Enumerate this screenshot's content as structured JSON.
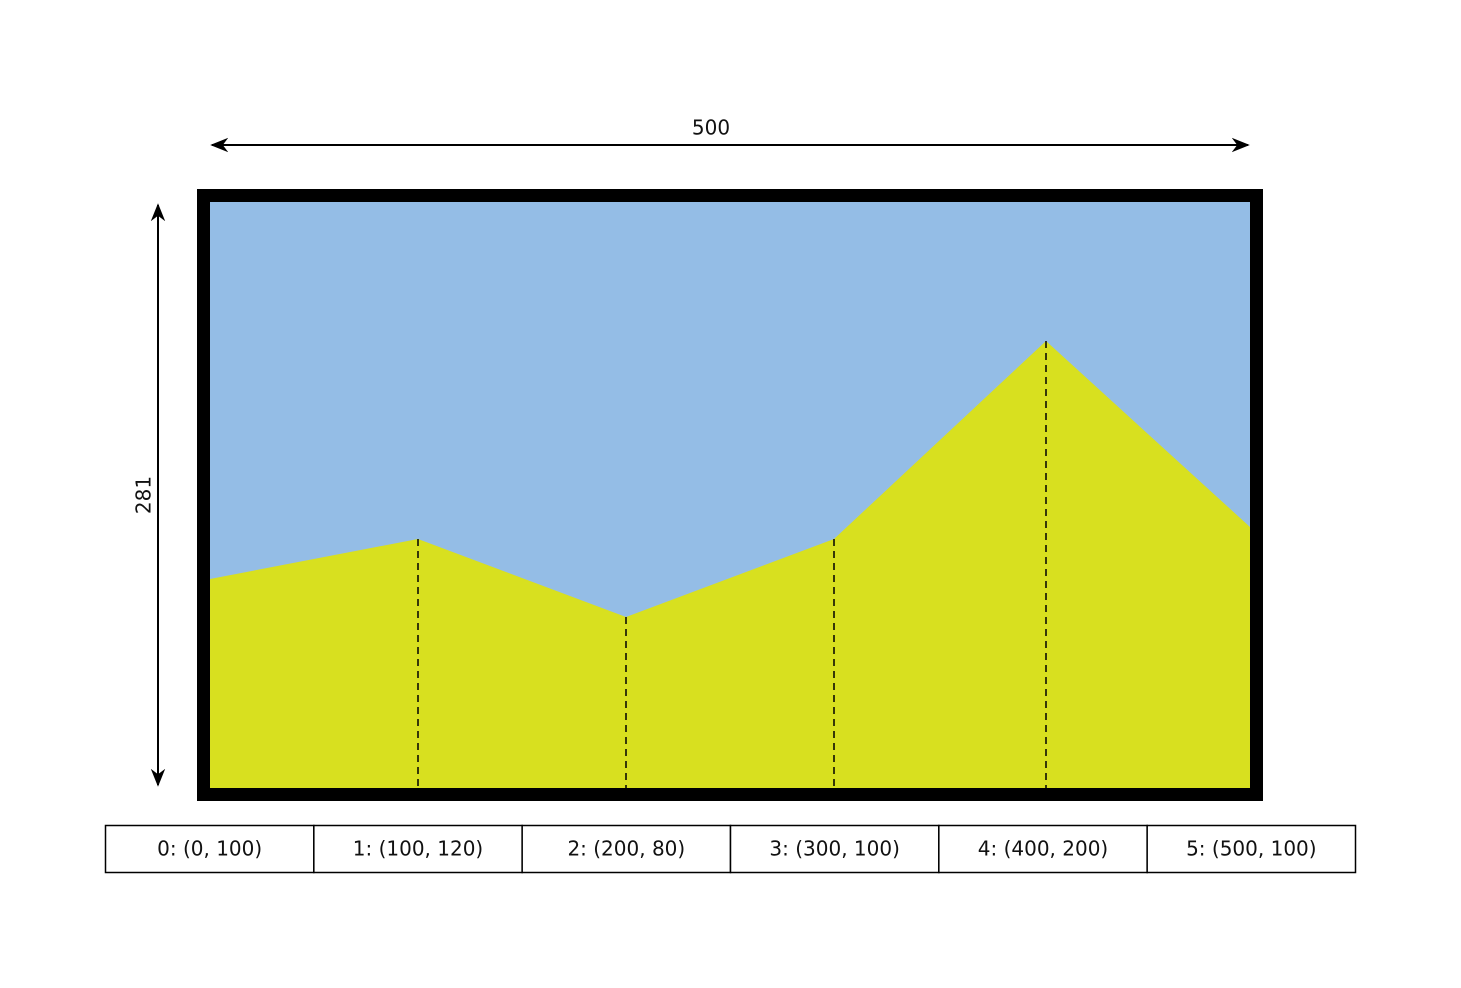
{
  "diagram": {
    "width_label": "500",
    "height_label": "281",
    "points": [
      "0: (0, 100)",
      "1: (100, 120)",
      "2: (200, 80)",
      "3: (300, 100)",
      "4: (400, 200)",
      "5: (500, 100)"
    ]
  }
}
